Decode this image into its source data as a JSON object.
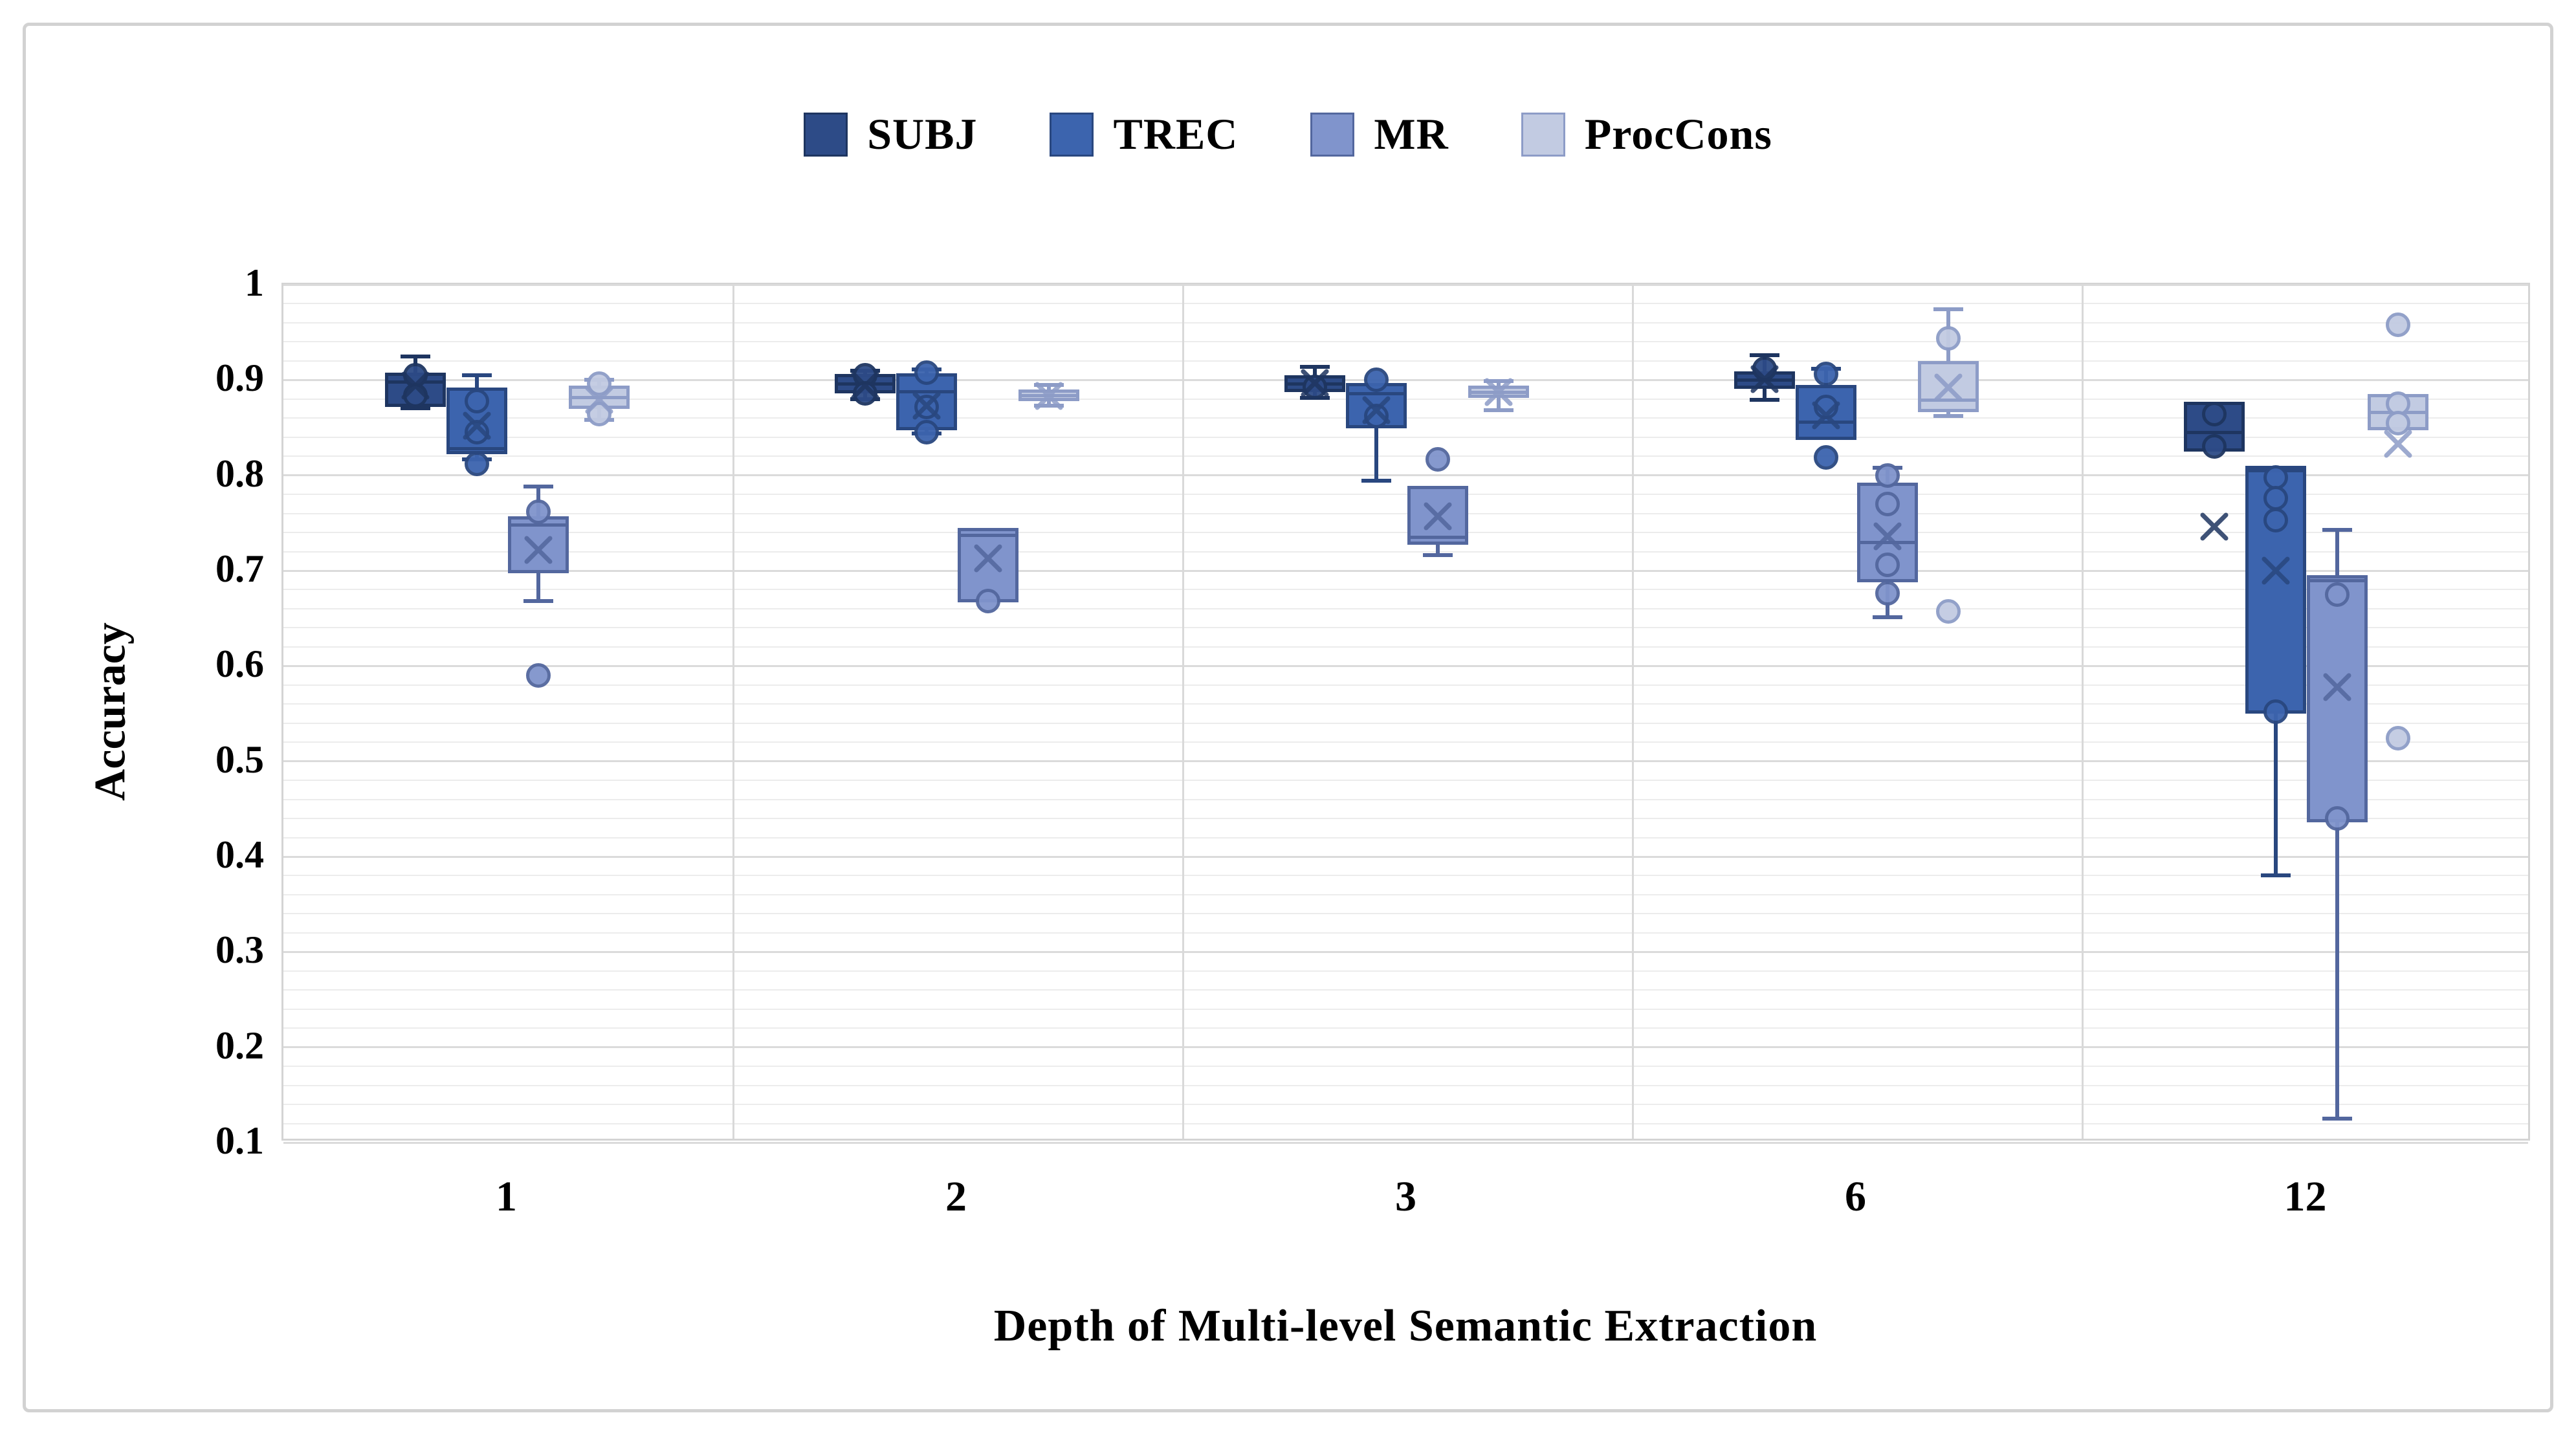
{
  "figure": {
    "x_axis_title": "Depth of Multi-level Semantic Extraction",
    "y_axis_title": "Accuracy"
  },
  "chart_data": {
    "type": "boxplot",
    "title": "",
    "xlabel": "Depth of Multi-level Semantic Extraction",
    "ylabel": "Accuracy",
    "categories": [
      "1",
      "2",
      "3",
      "6",
      "12"
    ],
    "ylim": [
      0.1,
      1.0
    ],
    "y_ticks": [
      {
        "label": "1",
        "value": 1.0
      },
      {
        "label": "0.9",
        "value": 0.9
      },
      {
        "label": "0.8",
        "value": 0.8
      },
      {
        "label": "0.7",
        "value": 0.7
      },
      {
        "label": "0.6",
        "value": 0.6
      },
      {
        "label": "0.5",
        "value": 0.5
      },
      {
        "label": "0.4",
        "value": 0.4
      },
      {
        "label": "0.3",
        "value": 0.3
      },
      {
        "label": "0.2",
        "value": 0.2
      },
      {
        "label": "0.1",
        "value": 0.1
      }
    ],
    "grid": {
      "minor_step": 0.02,
      "major_step": 0.1,
      "minor_color": "#ececec",
      "major_color": "#dbdbdb"
    },
    "legend_position": "top-center",
    "series": [
      {
        "name": "SUBJ",
        "fill": "#2d4b87",
        "border": "#1e3560",
        "boxes": [
          {
            "category": "1",
            "whisker_low": 0.868,
            "q1": 0.872,
            "median": 0.898,
            "q3": 0.908,
            "whisker_high": 0.927,
            "mean": 0.894,
            "dots": [
              0.905,
              0.884
            ]
          },
          {
            "category": "2",
            "whisker_low": 0.878,
            "q1": 0.886,
            "median": 0.896,
            "q3": 0.906,
            "whisker_high": 0.912,
            "mean": 0.894,
            "dots": [
              0.905,
              0.886
            ]
          },
          {
            "category": "3",
            "whisker_low": 0.879,
            "q1": 0.887,
            "median": 0.896,
            "q3": 0.905,
            "whisker_high": 0.916,
            "mean": 0.897,
            "dots": [
              0.893
            ]
          },
          {
            "category": "6",
            "whisker_low": 0.877,
            "q1": 0.891,
            "median": 0.9,
            "q3": 0.909,
            "whisker_high": 0.928,
            "mean": 0.901,
            "dots": [
              0.912
            ]
          },
          {
            "category": "12",
            "whisker_low": null,
            "q1": 0.825,
            "median": 0.845,
            "q3": 0.877,
            "whisker_high": null,
            "mean": 0.746,
            "dots": [
              0.864,
              0.83
            ]
          }
        ]
      },
      {
        "name": "TREC",
        "fill": "#3c64ae",
        "border": "#29477f",
        "boxes": [
          {
            "category": "1",
            "whisker_low": 0.815,
            "q1": 0.822,
            "median": 0.828,
            "q3": 0.892,
            "whisker_high": 0.907,
            "mean": 0.852,
            "dots": [
              0.878,
              0.845,
              0.812
            ]
          },
          {
            "category": "2",
            "whisker_low": 0.842,
            "q1": 0.847,
            "median": 0.888,
            "q3": 0.907,
            "whisker_high": 0.913,
            "mean": 0.873,
            "dots": [
              0.908,
              0.872,
              0.845
            ]
          },
          {
            "category": "3",
            "whisker_low": 0.792,
            "q1": 0.849,
            "median": 0.886,
            "q3": 0.897,
            "whisker_high": null,
            "mean": 0.868,
            "dots": [
              0.9,
              0.862
            ]
          },
          {
            "category": "6",
            "whisker_low": null,
            "q1": 0.837,
            "median": 0.856,
            "q3": 0.895,
            "whisker_high": 0.914,
            "mean": 0.863,
            "dots": [
              0.906,
              0.872,
              0.819
            ]
          },
          {
            "category": "12",
            "whisker_low": 0.378,
            "q1": 0.55,
            "median": 0.805,
            "q3": 0.81,
            "whisker_high": null,
            "mean": 0.7,
            "dots": [
              0.798,
              0.776,
              0.753,
              0.552
            ]
          }
        ]
      },
      {
        "name": "MR",
        "fill": "#8094cc",
        "border": "#53679e",
        "boxes": [
          {
            "category": "1",
            "whisker_low": 0.666,
            "q1": 0.697,
            "median": 0.748,
            "q3": 0.757,
            "whisker_high": 0.79,
            "mean": 0.722,
            "dots": [
              0.762,
              0.59
            ]
          },
          {
            "category": "2",
            "whisker_low": null,
            "q1": 0.667,
            "median": 0.737,
            "q3": 0.745,
            "whisker_high": null,
            "mean": 0.713,
            "dots": [
              0.668
            ]
          },
          {
            "category": "3",
            "whisker_low": 0.714,
            "q1": 0.727,
            "median": 0.735,
            "q3": 0.789,
            "whisker_high": null,
            "mean": 0.757,
            "dots": [
              0.817
            ]
          },
          {
            "category": "6",
            "whisker_low": 0.649,
            "q1": 0.688,
            "median": 0.73,
            "q3": 0.792,
            "whisker_high": 0.81,
            "mean": 0.736,
            "dots": [
              0.8,
              0.77,
              0.706,
              0.676
            ]
          },
          {
            "category": "12",
            "whisker_low": 0.123,
            "q1": 0.436,
            "median": 0.69,
            "q3": 0.695,
            "whisker_high": 0.745,
            "mean": 0.578,
            "dots": [
              0.675,
              0.44
            ]
          }
        ]
      },
      {
        "name": "ProcCons",
        "fill": "#c2cbe2",
        "border": "#8d9cc7",
        "boxes": [
          {
            "category": "1",
            "whisker_low": 0.856,
            "q1": 0.87,
            "median": 0.882,
            "q3": 0.894,
            "whisker_high": 0.902,
            "mean": 0.879,
            "dots": [
              0.896,
              0.864
            ]
          },
          {
            "category": "2",
            "whisker_low": 0.871,
            "q1": 0.878,
            "median": 0.884,
            "q3": 0.89,
            "whisker_high": 0.897,
            "mean": 0.883,
            "dots": []
          },
          {
            "category": "3",
            "whisker_low": 0.866,
            "q1": 0.881,
            "median": 0.887,
            "q3": 0.894,
            "whisker_high": 0.901,
            "mean": 0.887,
            "dots": []
          },
          {
            "category": "6",
            "whisker_low": 0.86,
            "q1": 0.866,
            "median": 0.879,
            "q3": 0.92,
            "whisker_high": 0.976,
            "mean": 0.892,
            "dots": [
              0.944,
              0.657
            ]
          },
          {
            "category": "12",
            "whisker_low": null,
            "q1": 0.847,
            "median": 0.866,
            "q3": 0.885,
            "whisker_high": null,
            "mean": 0.833,
            "dots": [
              0.958,
              0.875,
              0.855,
              0.524
            ]
          }
        ]
      }
    ]
  }
}
